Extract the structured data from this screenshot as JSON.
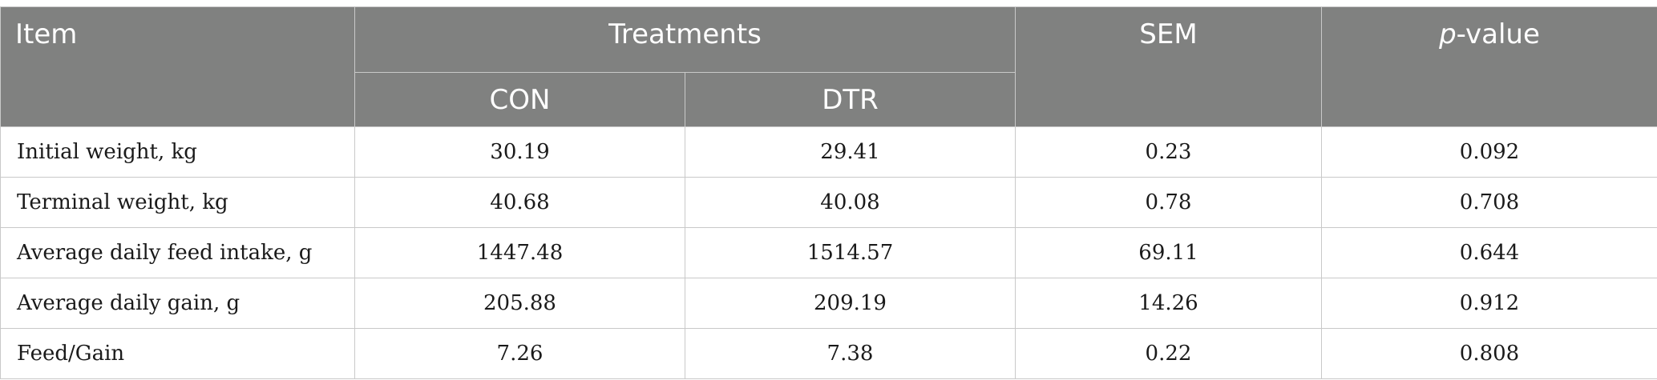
{
  "headers": {
    "item": "Item",
    "treatments": "Treatments",
    "sem": "SEM",
    "pvalue_p": "p",
    "pvalue_rest": "-value",
    "con": "CON",
    "dtr": "DTR"
  },
  "rows": [
    {
      "label": "Initial weight, kg",
      "con": "30.19",
      "dtr": "29.41",
      "sem": "0.23",
      "p": "0.092"
    },
    {
      "label": "Terminal weight, kg",
      "con": "40.68",
      "dtr": "40.08",
      "sem": "0.78",
      "p": "0.708"
    },
    {
      "label": "Average daily feed intake, g",
      "con": "1447.48",
      "dtr": "1514.57",
      "sem": "69.11",
      "p": "0.644"
    },
    {
      "label": "Average daily gain, g",
      "con": "205.88",
      "dtr": "209.19",
      "sem": "14.26",
      "p": "0.912"
    },
    {
      "label": "Feed/Gain",
      "con": "7.26",
      "dtr": "7.38",
      "sem": "0.22",
      "p": "0.808"
    }
  ]
}
